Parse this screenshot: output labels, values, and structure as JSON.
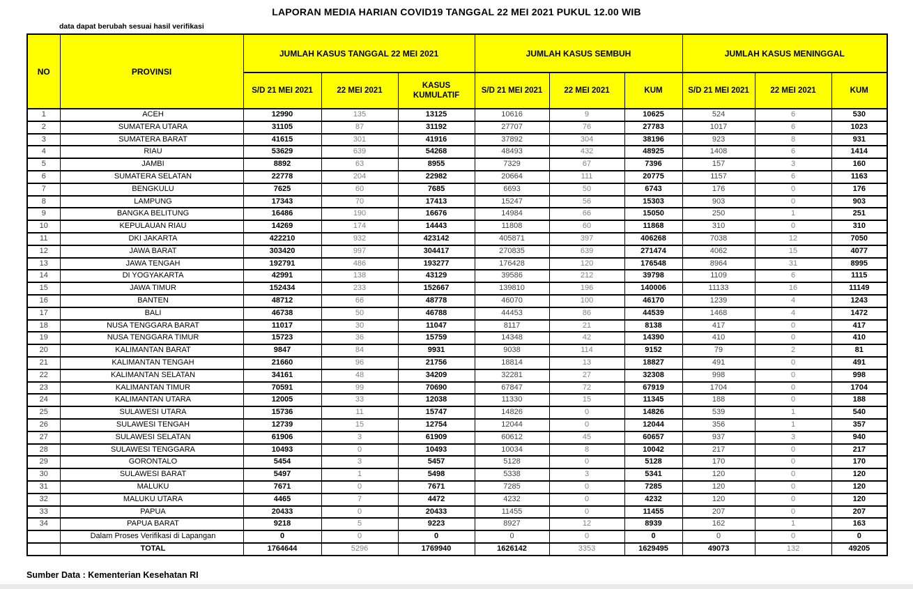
{
  "page": {
    "title": "LAPORAN MEDIA HARIAN COVID19 TANGGAL 22 MEI 2021 PUKUL 12.00 WIB",
    "note": "data dapat berubah sesuai hasil verifikasi",
    "source": "Sumber Data : Kementerian Kesehatan RI"
  },
  "colors": {
    "header_bg": "#FFFF00",
    "border": "#000000",
    "text_bold": "#000000",
    "text_dark": "#3F3F3F",
    "text_gray": "#808080"
  },
  "table": {
    "columns": {
      "no": "NO",
      "provinsi": "PROVINSI"
    },
    "groups": [
      {
        "label": "JUMLAH KASUS TANGGAL 22 MEI 2021",
        "sub": [
          "S/D 21 MEI 2021",
          "22 MEI 2021",
          "KASUS KUMULATIF"
        ]
      },
      {
        "label": "JUMLAH KASUS SEMBUH",
        "sub": [
          "S/D 21 MEI 2021",
          "22 MEI 2021",
          "KUM"
        ]
      },
      {
        "label": "JUMLAH KASUS MENINGGAL",
        "sub": [
          "S/D 21 MEI 2021",
          "22 MEI 2021",
          "KUM"
        ]
      }
    ],
    "rows": [
      {
        "no": "1",
        "name": "ACEH",
        "v": [
          "12990",
          "135",
          "13125",
          "10616",
          "9",
          "10625",
          "524",
          "6",
          "530"
        ]
      },
      {
        "no": "2",
        "name": "SUMATERA UTARA",
        "v": [
          "31105",
          "87",
          "31192",
          "27707",
          "76",
          "27783",
          "1017",
          "6",
          "1023"
        ]
      },
      {
        "no": "3",
        "name": "SUMATERA BARAT",
        "v": [
          "41615",
          "301",
          "41916",
          "37892",
          "304",
          "38196",
          "923",
          "8",
          "931"
        ]
      },
      {
        "no": "4",
        "name": "RIAU",
        "v": [
          "53629",
          "639",
          "54268",
          "48493",
          "432",
          "48925",
          "1408",
          "6",
          "1414"
        ]
      },
      {
        "no": "5",
        "name": "JAMBI",
        "v": [
          "8892",
          "63",
          "8955",
          "7329",
          "67",
          "7396",
          "157",
          "3",
          "160"
        ]
      },
      {
        "no": "6",
        "name": "SUMATERA SELATAN",
        "v": [
          "22778",
          "204",
          "22982",
          "20664",
          "111",
          "20775",
          "1157",
          "6",
          "1163"
        ]
      },
      {
        "no": "7",
        "name": "BENGKULU",
        "v": [
          "7625",
          "60",
          "7685",
          "6693",
          "50",
          "6743",
          "176",
          "0",
          "176"
        ]
      },
      {
        "no": "8",
        "name": "LAMPUNG",
        "v": [
          "17343",
          "70",
          "17413",
          "15247",
          "56",
          "15303",
          "903",
          "0",
          "903"
        ]
      },
      {
        "no": "9",
        "name": "BANGKA BELITUNG",
        "v": [
          "16486",
          "190",
          "16676",
          "14984",
          "66",
          "15050",
          "250",
          "1",
          "251"
        ]
      },
      {
        "no": "10",
        "name": "KEPULAUAN RIAU",
        "v": [
          "14269",
          "174",
          "14443",
          "11808",
          "60",
          "11868",
          "310",
          "0",
          "310"
        ]
      },
      {
        "no": "11",
        "name": "DKI JAKARTA",
        "v": [
          "422210",
          "932",
          "423142",
          "405871",
          "397",
          "406268",
          "7038",
          "12",
          "7050"
        ]
      },
      {
        "no": "12",
        "name": "JAWA BARAT",
        "v": [
          "303420",
          "997",
          "304417",
          "270835",
          "639",
          "271474",
          "4062",
          "15",
          "4077"
        ]
      },
      {
        "no": "13",
        "name": "JAWA TENGAH",
        "v": [
          "192791",
          "486",
          "193277",
          "176428",
          "120",
          "176548",
          "8964",
          "31",
          "8995"
        ]
      },
      {
        "no": "14",
        "name": "DI YOGYAKARTA",
        "v": [
          "42991",
          "138",
          "43129",
          "39586",
          "212",
          "39798",
          "1109",
          "6",
          "1115"
        ]
      },
      {
        "no": "15",
        "name": "JAWA TIMUR",
        "v": [
          "152434",
          "233",
          "152667",
          "139810",
          "196",
          "140006",
          "11133",
          "16",
          "11149"
        ]
      },
      {
        "no": "16",
        "name": "BANTEN",
        "v": [
          "48712",
          "66",
          "48778",
          "46070",
          "100",
          "46170",
          "1239",
          "4",
          "1243"
        ]
      },
      {
        "no": "17",
        "name": "BALI",
        "v": [
          "46738",
          "50",
          "46788",
          "44453",
          "86",
          "44539",
          "1468",
          "4",
          "1472"
        ]
      },
      {
        "no": "18",
        "name": "NUSA TENGGARA BARAT",
        "v": [
          "11017",
          "30",
          "11047",
          "8117",
          "21",
          "8138",
          "417",
          "0",
          "417"
        ]
      },
      {
        "no": "19",
        "name": "NUSA TENGGARA TIMUR",
        "v": [
          "15723",
          "36",
          "15759",
          "14348",
          "42",
          "14390",
          "410",
          "0",
          "410"
        ]
      },
      {
        "no": "20",
        "name": "KALIMANTAN BARAT",
        "v": [
          "9847",
          "84",
          "9931",
          "9038",
          "114",
          "9152",
          "79",
          "2",
          "81"
        ]
      },
      {
        "no": "21",
        "name": "KALIMANTAN TENGAH",
        "v": [
          "21660",
          "96",
          "21756",
          "18814",
          "13",
          "18827",
          "491",
          "0",
          "491"
        ]
      },
      {
        "no": "22",
        "name": "KALIMANTAN SELATAN",
        "v": [
          "34161",
          "48",
          "34209",
          "32281",
          "27",
          "32308",
          "998",
          "0",
          "998"
        ]
      },
      {
        "no": "23",
        "name": "KALIMANTAN TIMUR",
        "v": [
          "70591",
          "99",
          "70690",
          "67847",
          "72",
          "67919",
          "1704",
          "0",
          "1704"
        ]
      },
      {
        "no": "24",
        "name": "KALIMANTAN UTARA",
        "v": [
          "12005",
          "33",
          "12038",
          "11330",
          "15",
          "11345",
          "188",
          "0",
          "188"
        ]
      },
      {
        "no": "25",
        "name": "SULAWESI UTARA",
        "v": [
          "15736",
          "11",
          "15747",
          "14826",
          "0",
          "14826",
          "539",
          "1",
          "540"
        ]
      },
      {
        "no": "26",
        "name": "SULAWESI TENGAH",
        "v": [
          "12739",
          "15",
          "12754",
          "12044",
          "0",
          "12044",
          "356",
          "1",
          "357"
        ]
      },
      {
        "no": "27",
        "name": "SULAWESI SELATAN",
        "v": [
          "61906",
          "3",
          "61909",
          "60612",
          "45",
          "60657",
          "937",
          "3",
          "940"
        ]
      },
      {
        "no": "28",
        "name": "SULAWESI TENGGARA",
        "v": [
          "10493",
          "0",
          "10493",
          "10034",
          "8",
          "10042",
          "217",
          "0",
          "217"
        ]
      },
      {
        "no": "29",
        "name": "GORONTALO",
        "v": [
          "5454",
          "3",
          "5457",
          "5128",
          "0",
          "5128",
          "170",
          "0",
          "170"
        ]
      },
      {
        "no": "30",
        "name": "SULAWESI BARAT",
        "v": [
          "5497",
          "1",
          "5498",
          "5338",
          "3",
          "5341",
          "120",
          "0",
          "120"
        ]
      },
      {
        "no": "31",
        "name": "MALUKU",
        "v": [
          "7671",
          "0",
          "7671",
          "7285",
          "0",
          "7285",
          "120",
          "0",
          "120"
        ]
      },
      {
        "no": "32",
        "name": "MALUKU UTARA",
        "v": [
          "4465",
          "7",
          "4472",
          "4232",
          "0",
          "4232",
          "120",
          "0",
          "120"
        ]
      },
      {
        "no": "33",
        "name": "PAPUA",
        "v": [
          "20433",
          "0",
          "20433",
          "11455",
          "0",
          "11455",
          "207",
          "0",
          "207"
        ]
      },
      {
        "no": "34",
        "name": "PAPUA BARAT",
        "v": [
          "9218",
          "5",
          "9223",
          "8927",
          "12",
          "8939",
          "162",
          "1",
          "163"
        ]
      },
      {
        "no": "",
        "name": "Dalam Proses Verifikasi di Lapangan",
        "v": [
          "0",
          "0",
          "0",
          "0",
          "0",
          "0",
          "0",
          "0",
          "0"
        ]
      }
    ],
    "total": {
      "label": "TOTAL",
      "v": [
        "1764644",
        "5296",
        "1769940",
        "1626142",
        "3353",
        "1629495",
        "49073",
        "132",
        "49205"
      ]
    }
  }
}
